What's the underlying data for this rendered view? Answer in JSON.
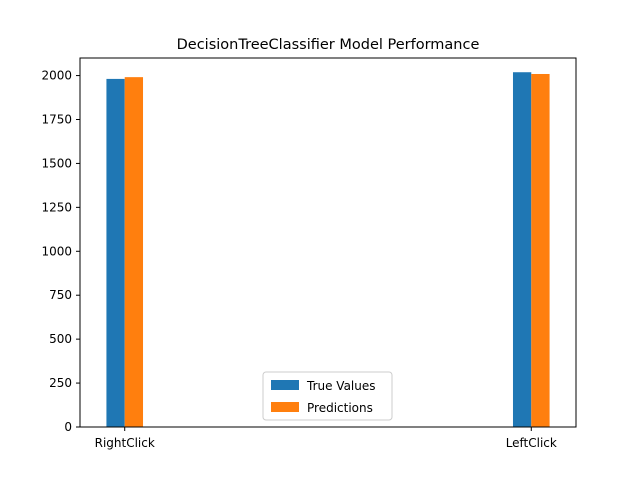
{
  "chart_data": {
    "type": "bar",
    "title": "DecisionTreeClassifier Model Performance",
    "xlabel": "",
    "ylabel": "",
    "categories": [
      "RightClick",
      "LeftClick"
    ],
    "series": [
      {
        "name": "True Values",
        "values": [
          1981,
          2019
        ],
        "color": "#1f77b4"
      },
      {
        "name": "Predictions",
        "values": [
          1991,
          2009
        ],
        "color": "#ff7f0e"
      }
    ],
    "ylim": [
      0,
      2100
    ],
    "yticks": [
      0,
      250,
      500,
      750,
      1000,
      1250,
      1500,
      1750,
      2000
    ],
    "grid": false,
    "legend_position": "lower center"
  }
}
